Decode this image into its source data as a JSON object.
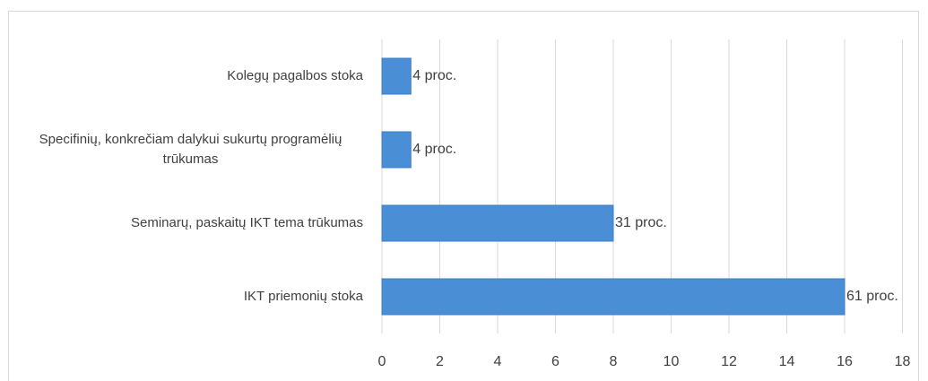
{
  "chart_data": {
    "type": "bar",
    "orientation": "horizontal",
    "categories": [
      "Kolegų pagalbos stoka",
      "Specifinių, konkrečiam dalykui sukurtų programėlių trūkumas",
      "Seminarų, paskaitų IKT tema trūkumas",
      "IKT priemonių stoka"
    ],
    "values": [
      1,
      1,
      8,
      16
    ],
    "value_labels": [
      "4 proc.",
      "4 proc.",
      "31 proc.",
      "61 proc."
    ],
    "color": "#4a8fd6",
    "xlim": [
      0,
      18
    ],
    "xticks": [
      0,
      2,
      4,
      6,
      8,
      10,
      12,
      14,
      16,
      18
    ],
    "grid": true
  }
}
